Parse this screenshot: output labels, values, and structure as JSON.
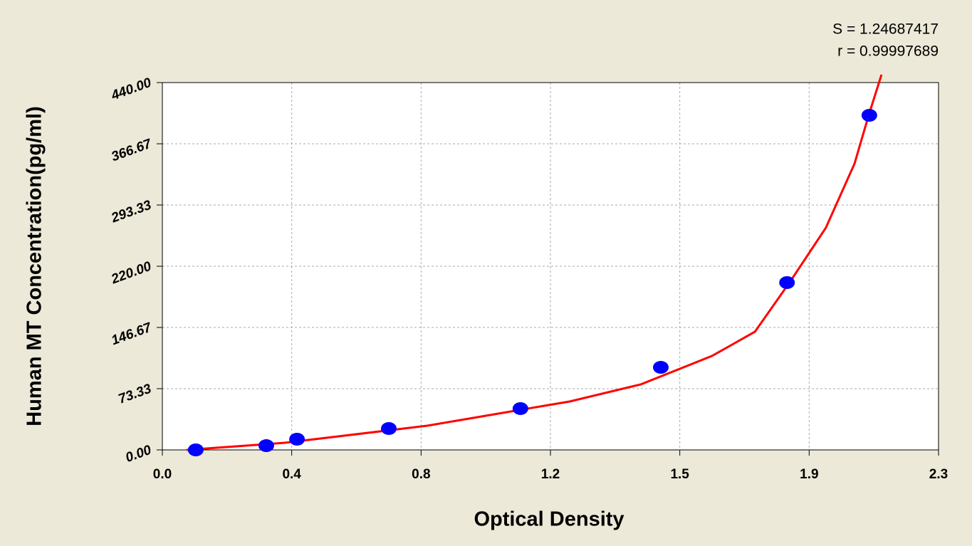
{
  "chart_data": {
    "type": "scatter",
    "x_label": "Optical Density",
    "y_label": "Human MT Concentration(pg/ml)",
    "annotations": [
      "S = 1.24687417",
      "r = 0.99997689"
    ],
    "xlim": [
      0,
      2.3
    ],
    "xticks": [
      {
        "value": 0,
        "label": "0.0"
      },
      {
        "value": 0.3833,
        "label": "0.4"
      },
      {
        "value": 0.7667,
        "label": "0.8"
      },
      {
        "value": 1.15,
        "label": "1.2"
      },
      {
        "value": 1.5333,
        "label": "1.5"
      },
      {
        "value": 1.9167,
        "label": "1.9"
      },
      {
        "value": 2.3,
        "label": "2.3"
      }
    ],
    "ylim": [
      0,
      440
    ],
    "yticks": [
      {
        "value": 0,
        "label": "0.00"
      },
      73.33,
      146.67,
      {
        "value": 220,
        "label": "220.00"
      },
      293.33,
      366.67,
      {
        "value": 440,
        "label": "440.00"
      }
    ],
    "grid": true,
    "series": [
      {
        "color": "#0000ff",
        "x": [
          0.099,
          0.308,
          0.399,
          0.671,
          1.061,
          1.477,
          1.851,
          2.095
        ],
        "values": [
          0,
          5.1,
          12.8,
          25.6,
          49.5,
          98.9,
          200.4,
          400.8
        ]
      }
    ],
    "fit": {
      "color": "#ff0000",
      "x": [
        0.072,
        0.363,
        0.785,
        1.207,
        1.418,
        1.629,
        1.756,
        1.861,
        1.966,
        2.051,
        2.093,
        2.131
      ],
      "values": [
        0,
        8.5,
        29,
        58,
        78.5,
        112.6,
        141.6,
        202,
        266,
        342.8,
        400.8,
        449.4
      ]
    }
  }
}
